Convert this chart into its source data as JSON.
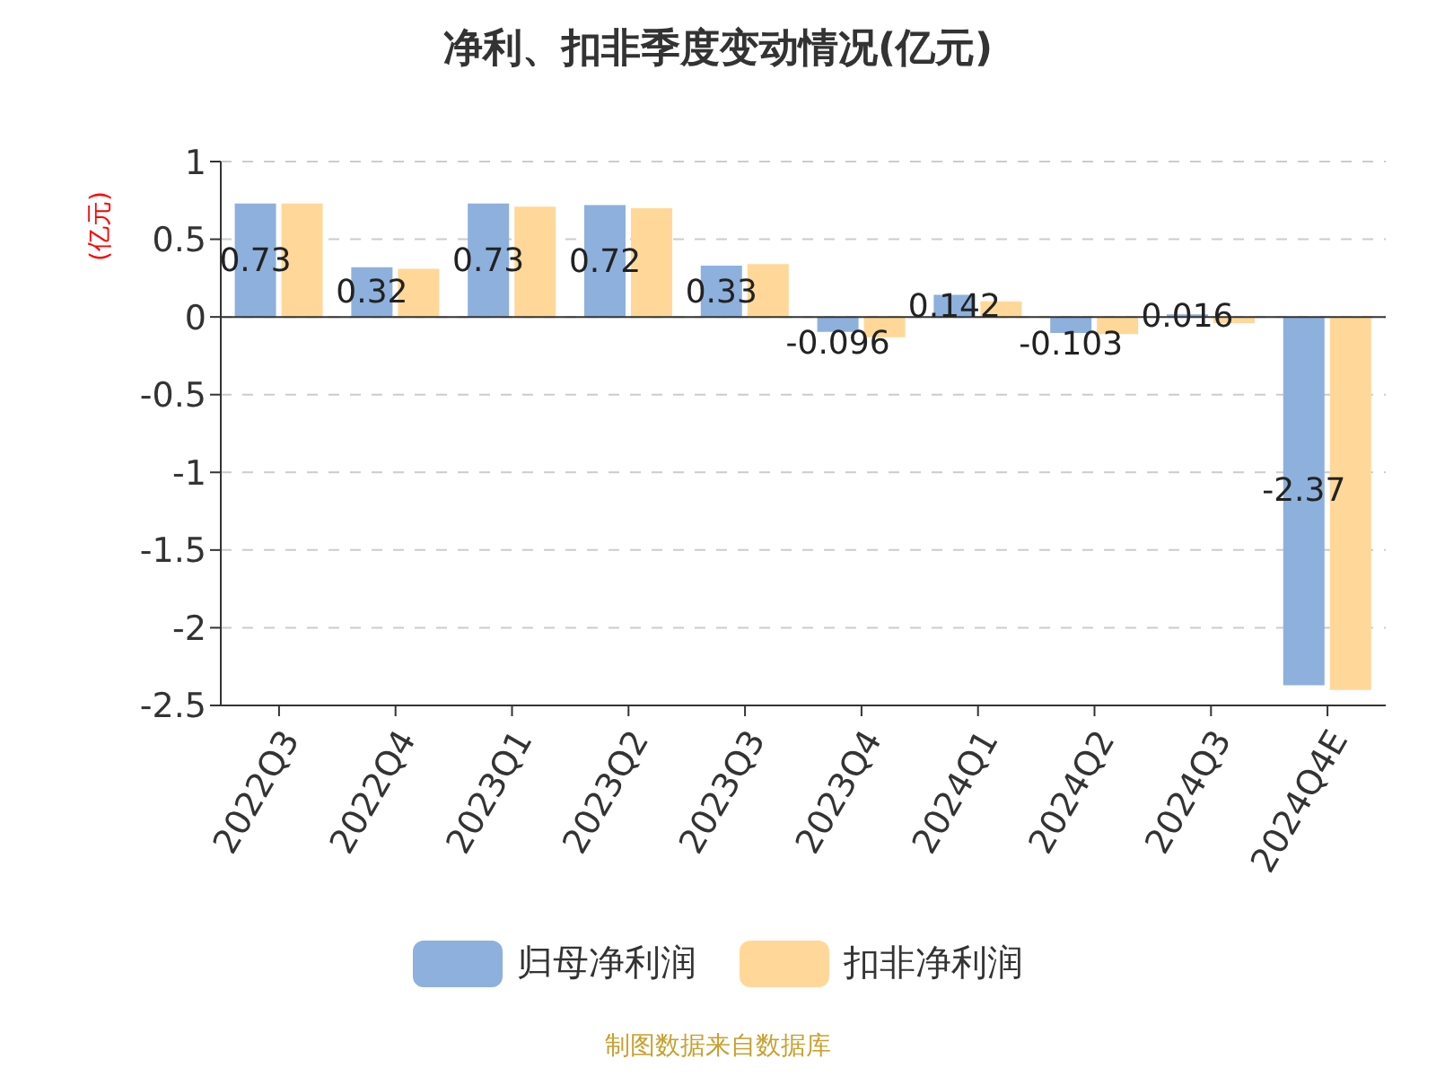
{
  "chart_data": {
    "type": "bar",
    "title": "净利、扣非季度变动情况(亿元)",
    "ylabel": "(亿元)",
    "categories": [
      "2022Q3",
      "2022Q4",
      "2023Q1",
      "2023Q2",
      "2023Q3",
      "2023Q4",
      "2024Q1",
      "2024Q2",
      "2024Q3",
      "2024Q4E"
    ],
    "series": [
      {
        "name": "归母净利润",
        "color": "#8eb0dc",
        "values": [
          0.73,
          0.32,
          0.73,
          0.72,
          0.33,
          -0.096,
          0.142,
          -0.103,
          0.016,
          -2.37
        ],
        "value_labels": [
          "0.73",
          "0.32",
          "0.73",
          "0.72",
          "0.33",
          "-0.096",
          "0.142",
          "-0.103",
          "0.016",
          "-2.37"
        ]
      },
      {
        "name": "扣非净利润",
        "color": "#ffd899",
        "values": [
          0.73,
          0.31,
          0.71,
          0.7,
          0.34,
          -0.13,
          0.1,
          -0.11,
          -0.04,
          -2.4
        ]
      }
    ],
    "ylim": [
      -2.5,
      1
    ],
    "yticks": [
      1,
      0.5,
      0,
      -0.5,
      -1,
      -1.5,
      -2,
      -2.5
    ],
    "grid": "y",
    "legend": "bottom",
    "annotations": [
      "制图数据来自数据库"
    ]
  }
}
